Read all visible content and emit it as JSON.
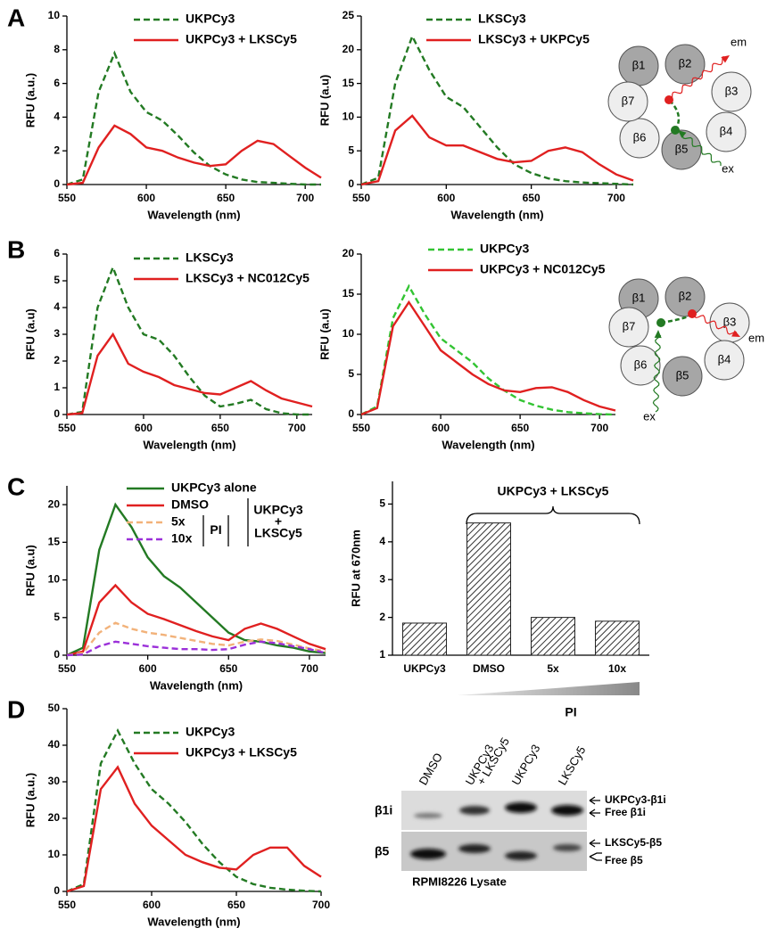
{
  "panel_labels": [
    "A",
    "B",
    "C",
    "D"
  ],
  "chart_data": [
    {
      "type": "line",
      "x_label": "Wavelength (nm)",
      "y_label": "RFU (a.u.)",
      "x": [
        550,
        560,
        570,
        580,
        590,
        600,
        610,
        620,
        630,
        640,
        650,
        660,
        670,
        680,
        690,
        700,
        710
      ],
      "xlim": [
        550,
        710
      ],
      "xticks": [
        550,
        600,
        650,
        700
      ],
      "ylim": [
        0,
        10
      ],
      "yticks": [
        0,
        2,
        4,
        6,
        8,
        10
      ],
      "series": [
        {
          "name": "UKPCy3",
          "color": "#237a23",
          "line_style": "dashed",
          "values": [
            0,
            0.3,
            5.5,
            7.8,
            5.5,
            4.3,
            3.8,
            2.9,
            1.9,
            1.1,
            0.6,
            0.3,
            0.15,
            0.1,
            0.05,
            0,
            0
          ]
        },
        {
          "name": "UKPCy3 + LKSCy5",
          "color": "#e02020",
          "line_style": "solid",
          "values": [
            0,
            0.1,
            2.2,
            3.5,
            3.0,
            2.2,
            2.0,
            1.6,
            1.3,
            1.1,
            1.2,
            2.0,
            2.6,
            2.4,
            1.7,
            1.0,
            0.4
          ]
        }
      ]
    },
    {
      "type": "line",
      "x_label": "Wavelength (nm)",
      "y_label": "RFU (a.u)",
      "x": [
        550,
        560,
        570,
        580,
        590,
        600,
        610,
        620,
        630,
        640,
        650,
        660,
        670,
        680,
        690,
        700,
        710
      ],
      "xlim": [
        550,
        710
      ],
      "xticks": [
        550,
        600,
        650,
        700
      ],
      "ylim": [
        0,
        25
      ],
      "yticks": [
        0,
        5,
        10,
        15,
        20,
        25
      ],
      "series": [
        {
          "name": "LKSCy3",
          "color": "#237a23",
          "line_style": "dashed",
          "values": [
            0,
            1,
            15,
            22,
            17,
            13,
            11.5,
            8.5,
            5.5,
            3,
            1.7,
            0.9,
            0.5,
            0.3,
            0.2,
            0.1,
            0
          ]
        },
        {
          "name": "LKSCy3 + UKPCy5",
          "color": "#e02020",
          "line_style": "solid",
          "values": [
            0,
            0.5,
            8,
            10.2,
            7,
            5.8,
            5.8,
            4.8,
            3.8,
            3.3,
            3.5,
            5,
            5.5,
            4.8,
            3,
            1.5,
            0.6
          ]
        }
      ]
    },
    {
      "type": "line",
      "x_label": "Wavelength (nm)",
      "y_label": "RFU (a.u)",
      "x": [
        550,
        560,
        570,
        580,
        590,
        600,
        610,
        620,
        630,
        640,
        650,
        660,
        670,
        680,
        690,
        700,
        710
      ],
      "xlim": [
        550,
        710
      ],
      "xticks": [
        550,
        600,
        650,
        700
      ],
      "ylim": [
        0,
        6
      ],
      "yticks": [
        0,
        1,
        2,
        3,
        4,
        5,
        6
      ],
      "series": [
        {
          "name": "LKSCy3",
          "color": "#237a23",
          "line_style": "dashed",
          "values": [
            0,
            0.1,
            4,
            5.5,
            4,
            3,
            2.8,
            2.2,
            1.4,
            0.7,
            0.3,
            0.4,
            0.55,
            0.2,
            0.05,
            0,
            0
          ]
        },
        {
          "name": "LKSCy3 + NC012Cy5",
          "color": "#e02020",
          "line_style": "solid",
          "values": [
            0,
            0.05,
            2.2,
            3,
            1.9,
            1.6,
            1.4,
            1.1,
            0.95,
            0.8,
            0.75,
            1.0,
            1.25,
            0.9,
            0.6,
            0.45,
            0.3
          ]
        }
      ]
    },
    {
      "type": "line",
      "x_label": "Wavelength (nm)",
      "y_label": "RFU (a.u)",
      "x": [
        550,
        560,
        570,
        580,
        590,
        600,
        610,
        620,
        630,
        640,
        650,
        660,
        670,
        680,
        690,
        700,
        710
      ],
      "xlim": [
        550,
        710
      ],
      "xticks": [
        550,
        600,
        650,
        700
      ],
      "ylim": [
        0,
        20
      ],
      "yticks": [
        0,
        5,
        10,
        15,
        20
      ],
      "series": [
        {
          "name": "UKPCy3",
          "color": "#33c433",
          "line_style": "dashed",
          "values": [
            0,
            1,
            12,
            16,
            12.5,
            9.5,
            8,
            6.5,
            4.5,
            3,
            1.8,
            1.1,
            0.6,
            0.3,
            0.15,
            0.05,
            0
          ]
        },
        {
          "name": "UKPCy3 + NC012Cy5",
          "color": "#e02020",
          "line_style": "solid",
          "values": [
            0,
            0.8,
            11,
            14,
            11,
            8,
            6.5,
            5,
            3.8,
            3,
            2.8,
            3.3,
            3.4,
            2.8,
            1.8,
            1,
            0.5
          ]
        }
      ]
    },
    {
      "type": "line",
      "x_label": "Wavelength (nm)",
      "y_label": "RFU (a.u)",
      "x": [
        550,
        560,
        570,
        580,
        590,
        600,
        610,
        620,
        630,
        640,
        650,
        660,
        670,
        680,
        690,
        700,
        710
      ],
      "xlim": [
        550,
        710
      ],
      "xticks": [
        550,
        600,
        650,
        700
      ],
      "ylim": [
        0,
        22.5
      ],
      "yticks": [
        0,
        5,
        10,
        15,
        20
      ],
      "bracket_label": [
        "UKPCy3",
        "+",
        "LKSCy5"
      ],
      "inhibitor_label": "PI",
      "series": [
        {
          "name": "UKPCy3 alone",
          "color": "#237a23",
          "line_style": "solid",
          "values": [
            0,
            1,
            14,
            20,
            17,
            13,
            10.5,
            9,
            7,
            5,
            3,
            2,
            1.8,
            1.3,
            1,
            0.5,
            0.3
          ]
        },
        {
          "name": "DMSO",
          "color": "#e02020",
          "line_style": "solid",
          "values": [
            0,
            0.5,
            7,
            9.3,
            7,
            5.5,
            4.8,
            4,
            3.2,
            2.5,
            2,
            3.5,
            4.2,
            3.5,
            2.5,
            1.5,
            0.8
          ]
        },
        {
          "name": "5x",
          "color": "#f2b27a",
          "line_style": "dashed",
          "values": [
            0,
            0.3,
            3,
            4.3,
            3.5,
            3,
            2.7,
            2.3,
            1.9,
            1.5,
            1.3,
            1.8,
            2.1,
            1.9,
            1.4,
            0.9,
            0.5
          ]
        },
        {
          "name": "10x",
          "color": "#9b30d9",
          "line_style": "dashed",
          "values": [
            0,
            0.1,
            1.2,
            1.8,
            1.5,
            1.2,
            1.0,
            0.8,
            0.8,
            0.7,
            0.8,
            1.4,
            1.8,
            1.6,
            1.2,
            0.8,
            0.3
          ]
        }
      ]
    },
    {
      "type": "bar",
      "y_label": "RFU at 670nm",
      "color": "#555555",
      "pattern": "hatched",
      "categories": [
        "UKPCy3",
        "DMSO",
        "5x",
        "10x"
      ],
      "values": [
        1.85,
        4.5,
        2.0,
        1.9
      ],
      "ylim": [
        1,
        5.6
      ],
      "yticks": [
        1,
        2,
        3,
        4,
        5
      ],
      "bracket_label": "UKPCy3 + LKSCy5",
      "gradient_label": "PI"
    },
    {
      "type": "line",
      "x_label": "Wavelength (nm)",
      "y_label": "RFU (a.u.)",
      "x": [
        550,
        560,
        570,
        580,
        590,
        600,
        610,
        620,
        630,
        640,
        650,
        660,
        670,
        680,
        690,
        700
      ],
      "xlim": [
        550,
        700
      ],
      "xticks": [
        550,
        600,
        650,
        700
      ],
      "ylim": [
        0,
        50
      ],
      "yticks": [
        0,
        10,
        20,
        30,
        40,
        50
      ],
      "series": [
        {
          "name": "UKPCy3",
          "color": "#237a23",
          "line_style": "dashed",
          "values": [
            0,
            2,
            35,
            44,
            35,
            28,
            24,
            19,
            13,
            8,
            4,
            2,
            1,
            0.5,
            0.2,
            0
          ]
        },
        {
          "name": "UKPCy3 + LKSCy5",
          "color": "#e02020",
          "line_style": "solid",
          "values": [
            0,
            1.5,
            28,
            34,
            24,
            18,
            14,
            10,
            8,
            6.5,
            6,
            10,
            12,
            12,
            7,
            4
          ]
        }
      ]
    }
  ],
  "diagrams": [
    {
      "subunits": [
        "β1",
        "β2",
        "β3",
        "β4",
        "β5",
        "β6",
        "β7"
      ],
      "em": "em",
      "ex": "ex"
    },
    {
      "subunits": [
        "β1",
        "β2",
        "β3",
        "β4",
        "β5",
        "β6",
        "β7"
      ],
      "em": "em",
      "ex": "ex"
    }
  ],
  "gel": {
    "lanes": [
      [
        "DMSO"
      ],
      [
        "UKPCy3",
        "+ LKSCy5"
      ],
      [
        "UKPCy3"
      ],
      [
        "LKSCy5"
      ]
    ],
    "rows": [
      "β1i",
      "β5"
    ],
    "band_labels": [
      "UKPCy3-β1i",
      "Free β1i",
      "LKSCy5-β5",
      "Free β5"
    ],
    "caption": "RPMI8226 Lysate"
  }
}
